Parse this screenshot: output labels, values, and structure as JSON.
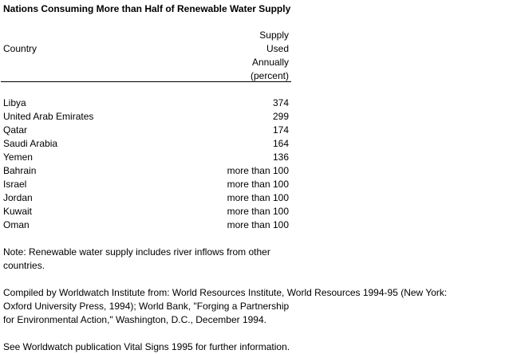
{
  "title": "Nations Consuming More than Half of Renewable Water Supply",
  "table": {
    "header_country": "Country",
    "header_supply_lines": [
      "Supply",
      "Used",
      "Annually",
      "(percent)"
    ],
    "rows": [
      {
        "country": "Libya",
        "value": "374"
      },
      {
        "country": "United Arab Emirates",
        "value": "299"
      },
      {
        "country": "Qatar",
        "value": "174"
      },
      {
        "country": "Saudi Arabia",
        "value": "164"
      },
      {
        "country": "Yemen",
        "value": "136"
      },
      {
        "country": "Bahrain",
        "value": "more than 100"
      },
      {
        "country": "Israel",
        "value": "more than 100"
      },
      {
        "country": "Jordan",
        "value": "more than 100"
      },
      {
        "country": "Kuwait",
        "value": "more than 100"
      },
      {
        "country": "Oman",
        "value": "more than 100"
      }
    ]
  },
  "note_lines": [
    "Note: Renewable water supply includes river inflows  from other",
    "countries."
  ],
  "compiled_lines": [
    "Compiled by Worldwatch Institute from: World Resources Institute, World Resources 1994-95 (New York:",
    "Oxford University Press, 1994); World Bank, \"Forging a Partnership",
    "for Environmental Action,\" Washington, D.C., December 1994."
  ],
  "see_also": "See Worldwatch publication Vital Signs 1995 for further information."
}
